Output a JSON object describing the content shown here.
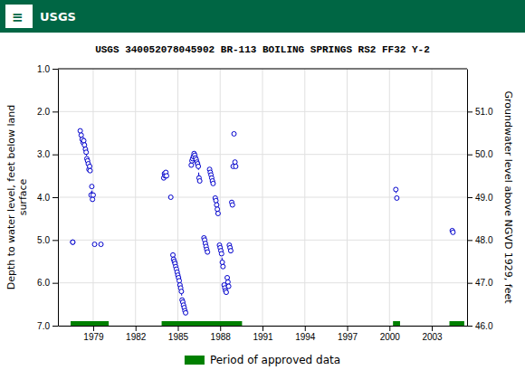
{
  "chart_data": {
    "type": "line",
    "title": "USGS 340052078045902 BR-113 BOILING SPRINGS RS2 FF32 Y-2",
    "annotations": [
      "≡",
      "USGS"
    ],
    "ylabel": "Depth to water level, feet below land\nsurface",
    "y2label": "Groundwater level above NGVD 1929, feet",
    "xlim": [
      1976.5,
      2005.5
    ],
    "xticks": [
      1979,
      1982,
      1985,
      1988,
      1991,
      1994,
      1997,
      2000,
      2003
    ],
    "ylim": [
      7.0,
      1.0
    ],
    "yticks": [
      {
        "value": 1.0,
        "label": "1.0"
      },
      {
        "value": 2.0,
        "label": "2.0"
      },
      {
        "value": 3.0,
        "label": "3.0"
      },
      {
        "value": 4.0,
        "label": "4.0"
      },
      {
        "value": 5.0,
        "label": "5.0"
      },
      {
        "value": 6.0,
        "label": "6.0"
      },
      {
        "value": 7.0,
        "label": "7.0"
      }
    ],
    "y2lim": [
      46.0,
      52.0
    ],
    "y2ticks": [
      {
        "value": 46.0,
        "label": "46.0"
      },
      {
        "value": 47.0,
        "label": "47.0"
      },
      {
        "value": 48.0,
        "label": "48.0"
      },
      {
        "value": 49.0,
        "label": "49.0"
      },
      {
        "value": 50.0,
        "label": "50.0"
      },
      {
        "value": 51.0,
        "label": "51.0"
      }
    ],
    "grid": true,
    "legend": "bottom",
    "series": [
      {
        "type": "line",
        "color": "#0000cc",
        "marker": "circle",
        "line_style": "dashed",
        "x": [
          1977.55,
          1977.55,
          null,
          1978.08,
          1978.15,
          1978.22,
          1978.28,
          1978.33,
          1978.38,
          1978.45,
          1978.5,
          1978.55,
          1978.6,
          1978.65,
          1978.7,
          1978.75,
          1978.78,
          null,
          1978.85,
          1978.9,
          1978.95,
          1979.0,
          null,
          1979.1,
          null,
          1979.55,
          null,
          1984.0,
          1984.05,
          1984.1,
          1984.15,
          1984.2,
          null,
          1984.5,
          null,
          1984.65,
          1984.7,
          1984.75,
          1984.8,
          1984.85,
          1984.9,
          1984.95,
          1985.0,
          1985.05,
          1985.1,
          1985.15,
          1985.2,
          1985.25,
          1985.3,
          1985.35,
          1985.4,
          1985.45,
          1985.5,
          1985.55,
          null,
          1985.95,
          1986.0,
          1986.05,
          1986.1,
          1986.15,
          1986.2,
          1986.25,
          1986.3,
          1986.35,
          1986.4,
          1986.45,
          1986.5,
          1986.55,
          null,
          1986.85,
          1986.9,
          1986.95,
          1987.0,
          1987.05,
          1987.1,
          null,
          1987.25,
          1987.3,
          1987.35,
          1987.4,
          1987.45,
          1987.5,
          null,
          1987.65,
          1987.7,
          1987.75,
          1987.8,
          1987.85,
          null,
          1987.95,
          1988.0,
          1988.05,
          1988.1,
          1988.15,
          1988.2,
          null,
          1988.28,
          1988.33,
          1988.38,
          1988.43,
          null,
          1988.5,
          1988.55,
          1988.6,
          null,
          1988.65,
          1988.7,
          1988.75,
          null,
          1988.82,
          1988.87,
          null,
          1988.92,
          null,
          1988.98,
          null,
          1989.05,
          1989.1,
          null,
          2000.45,
          2000.52,
          null,
          2004.45,
          2004.5
        ],
        "values": [
          5.05,
          5.05,
          null,
          2.45,
          2.55,
          2.65,
          2.72,
          2.68,
          2.78,
          2.88,
          2.95,
          3.1,
          3.15,
          3.22,
          3.35,
          3.28,
          3.38,
          null,
          3.95,
          3.75,
          4.05,
          3.95,
          null,
          5.1,
          null,
          5.1,
          null,
          3.55,
          3.45,
          3.5,
          3.42,
          3.5,
          null,
          4.0,
          null,
          5.35,
          5.45,
          5.5,
          5.55,
          5.62,
          5.68,
          5.75,
          5.82,
          5.88,
          5.95,
          6.05,
          6.12,
          6.2,
          6.4,
          6.45,
          6.52,
          6.58,
          6.65,
          6.7,
          null,
          3.25,
          3.15,
          3.1,
          3.05,
          2.98,
          3.02,
          3.08,
          3.12,
          3.18,
          3.22,
          3.28,
          3.55,
          3.62,
          null,
          4.95,
          5.0,
          5.08,
          5.15,
          5.22,
          5.28,
          null,
          3.35,
          3.42,
          3.48,
          3.55,
          3.62,
          3.68,
          null,
          4.02,
          4.08,
          4.18,
          4.28,
          4.38,
          null,
          5.12,
          5.18,
          5.25,
          5.32,
          5.52,
          5.62,
          null,
          6.05,
          6.12,
          6.18,
          6.22,
          null,
          5.88,
          5.98,
          6.08,
          null,
          5.12,
          5.18,
          5.25,
          null,
          4.12,
          4.18,
          null,
          3.28,
          null,
          2.52,
          null,
          3.18,
          3.28,
          null,
          3.82,
          4.02,
          null,
          4.78,
          4.82
        ]
      },
      {
        "type": "bar",
        "orientation": "horizontal",
        "name": "Period of approved data",
        "color": "#008000",
        "values": [
          7.0,
          7.0,
          7.0,
          7.0
        ],
        "start": [
          1977.4,
          1983.85,
          2000.25,
          2004.25
        ],
        "end": [
          1980.1,
          1989.55,
          2000.75,
          2005.3
        ]
      }
    ]
  }
}
